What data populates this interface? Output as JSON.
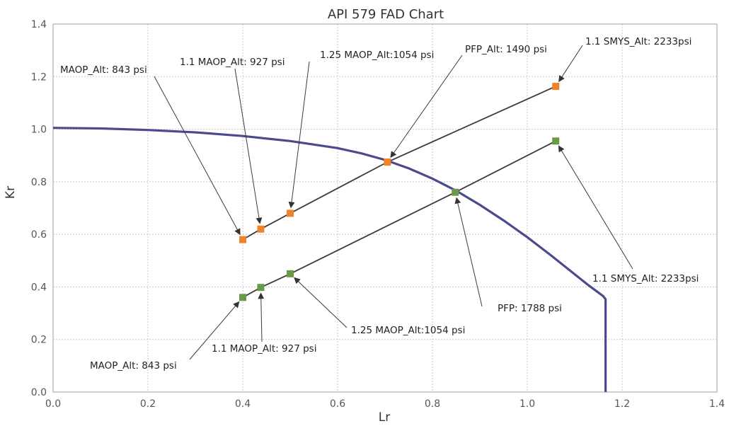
{
  "chart_data": {
    "type": "scatter",
    "title": "API 579 FAD Chart",
    "xlabel": "Lr",
    "ylabel": "Kr",
    "xlim": [
      0,
      1.4
    ],
    "ylim": [
      0,
      1.4
    ],
    "x_ticks": [
      "0.0",
      "0.2",
      "0.4",
      "0.6",
      "0.8",
      "1.0",
      "1.2",
      "1.4"
    ],
    "y_ticks": [
      "0.0",
      "0.2",
      "0.4",
      "0.6",
      "0.8",
      "1.0",
      "1.2",
      "1.4"
    ],
    "grid": true,
    "colors": {
      "fad_curve": "#4b4a8c",
      "series_orange": "#f0832a",
      "series_green": "#6a9a48",
      "lines": "#3a3a3a"
    },
    "fad_curve": {
      "x": [
        0,
        0.1,
        0.2,
        0.3,
        0.4,
        0.5,
        0.6,
        0.65,
        0.7,
        0.75,
        0.8,
        0.85,
        0.9,
        0.95,
        1.0,
        1.05,
        1.1,
        1.13,
        1.16,
        1.165,
        1.165
      ],
      "y": [
        1.005,
        1.003,
        0.997,
        0.988,
        0.974,
        0.955,
        0.928,
        0.908,
        0.883,
        0.851,
        0.812,
        0.766,
        0.712,
        0.653,
        0.589,
        0.52,
        0.448,
        0.405,
        0.365,
        0.353,
        0.0
      ]
    },
    "series": [
      {
        "color": "#f0832a",
        "x": [
          0.4,
          0.438,
          0.5,
          0.705,
          1.06
        ],
        "y": [
          0.58,
          0.62,
          0.68,
          0.875,
          1.163
        ]
      },
      {
        "color": "#6a9a48",
        "x": [
          0.4,
          0.438,
          0.5,
          0.848,
          1.06
        ],
        "y": [
          0.36,
          0.398,
          0.45,
          0.76,
          0.955
        ]
      }
    ],
    "annotations": [
      {
        "text": "MAOP_Alt:  843 psi",
        "series": 0,
        "point": 0
      },
      {
        "text": "1.1 MAOP_Alt:  927 psi",
        "series": 0,
        "point": 1
      },
      {
        "text": "1.25 MAOP_Alt:1054 psi",
        "series": 0,
        "point": 2
      },
      {
        "text": "PFP_Alt:  1490 psi",
        "series": 0,
        "point": 3
      },
      {
        "text": "1.1 SMYS_Alt:  2233psi",
        "series": 0,
        "point": 4
      },
      {
        "text": "MAOP_Alt:  843 psi",
        "series": 1,
        "point": 0
      },
      {
        "text": "1.1 MAOP_Alt:  927 psi",
        "series": 1,
        "point": 1
      },
      {
        "text": "1.25 MAOP_Alt:1054 psi",
        "series": 1,
        "point": 2
      },
      {
        "text": "PFP:  1788 psi",
        "series": 1,
        "point": 3
      },
      {
        "text": "1.1 SMYS_Alt:  2233psi",
        "series": 1,
        "point": 4
      }
    ]
  }
}
